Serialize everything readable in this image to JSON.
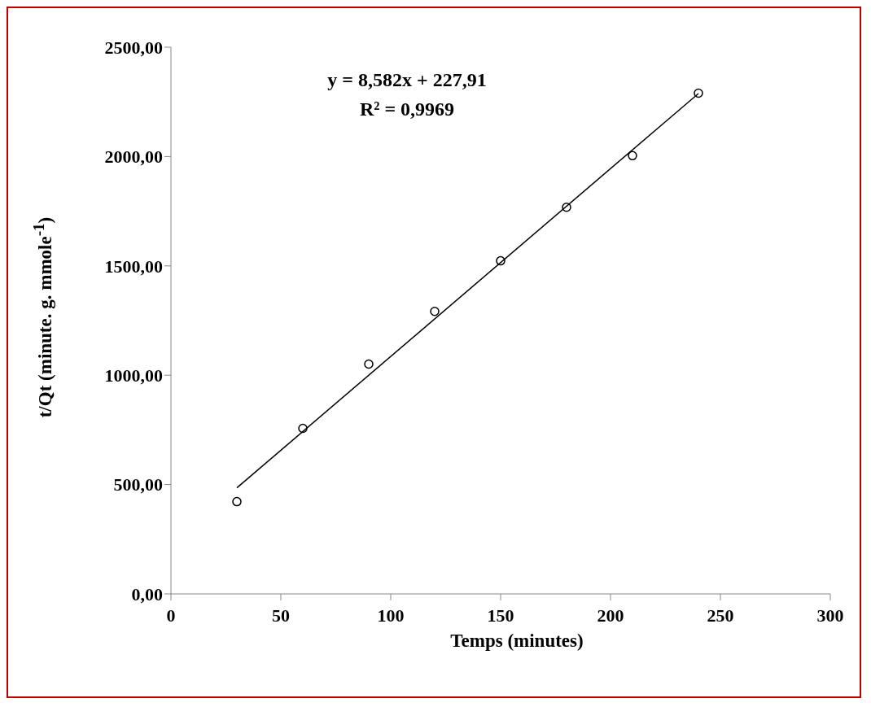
{
  "chart_data": {
    "type": "scatter",
    "xlabel": "Temps (minutes)",
    "ylabel": "t/Qt (minute. g. mmole$^{-1}$)",
    "annotations": [
      "y = 8,582x + 227,91",
      "R² = 0,9969"
    ],
    "x": [
      30,
      60,
      90,
      120,
      150,
      180,
      210,
      240
    ],
    "series": [
      {
        "color": "#000000",
        "marker": "circle",
        "values": [
          422,
          757,
          1051,
          1292,
          1523,
          1768,
          2004,
          2290
        ]
      },
      {
        "type": "line",
        "color": "#000000",
        "marker": "none",
        "line_style": "solid",
        "x": [
          30,
          240
        ],
        "values": [
          485,
          2288
        ]
      }
    ],
    "xlim": [
      0,
      300
    ],
    "xticks": [
      0,
      50,
      100,
      150,
      200,
      250,
      300
    ],
    "ylim": [
      0,
      2500
    ],
    "yticks": [
      {
        "value": 0,
        "label": "0,00"
      },
      {
        "value": 500,
        "label": "500,00"
      },
      {
        "value": 1000,
        "label": "1000,00"
      },
      {
        "value": 1500,
        "label": "1500,00"
      },
      {
        "value": 2000,
        "label": "2000,00"
      },
      {
        "value": 2500,
        "label": "2500,00"
      }
    ]
  }
}
